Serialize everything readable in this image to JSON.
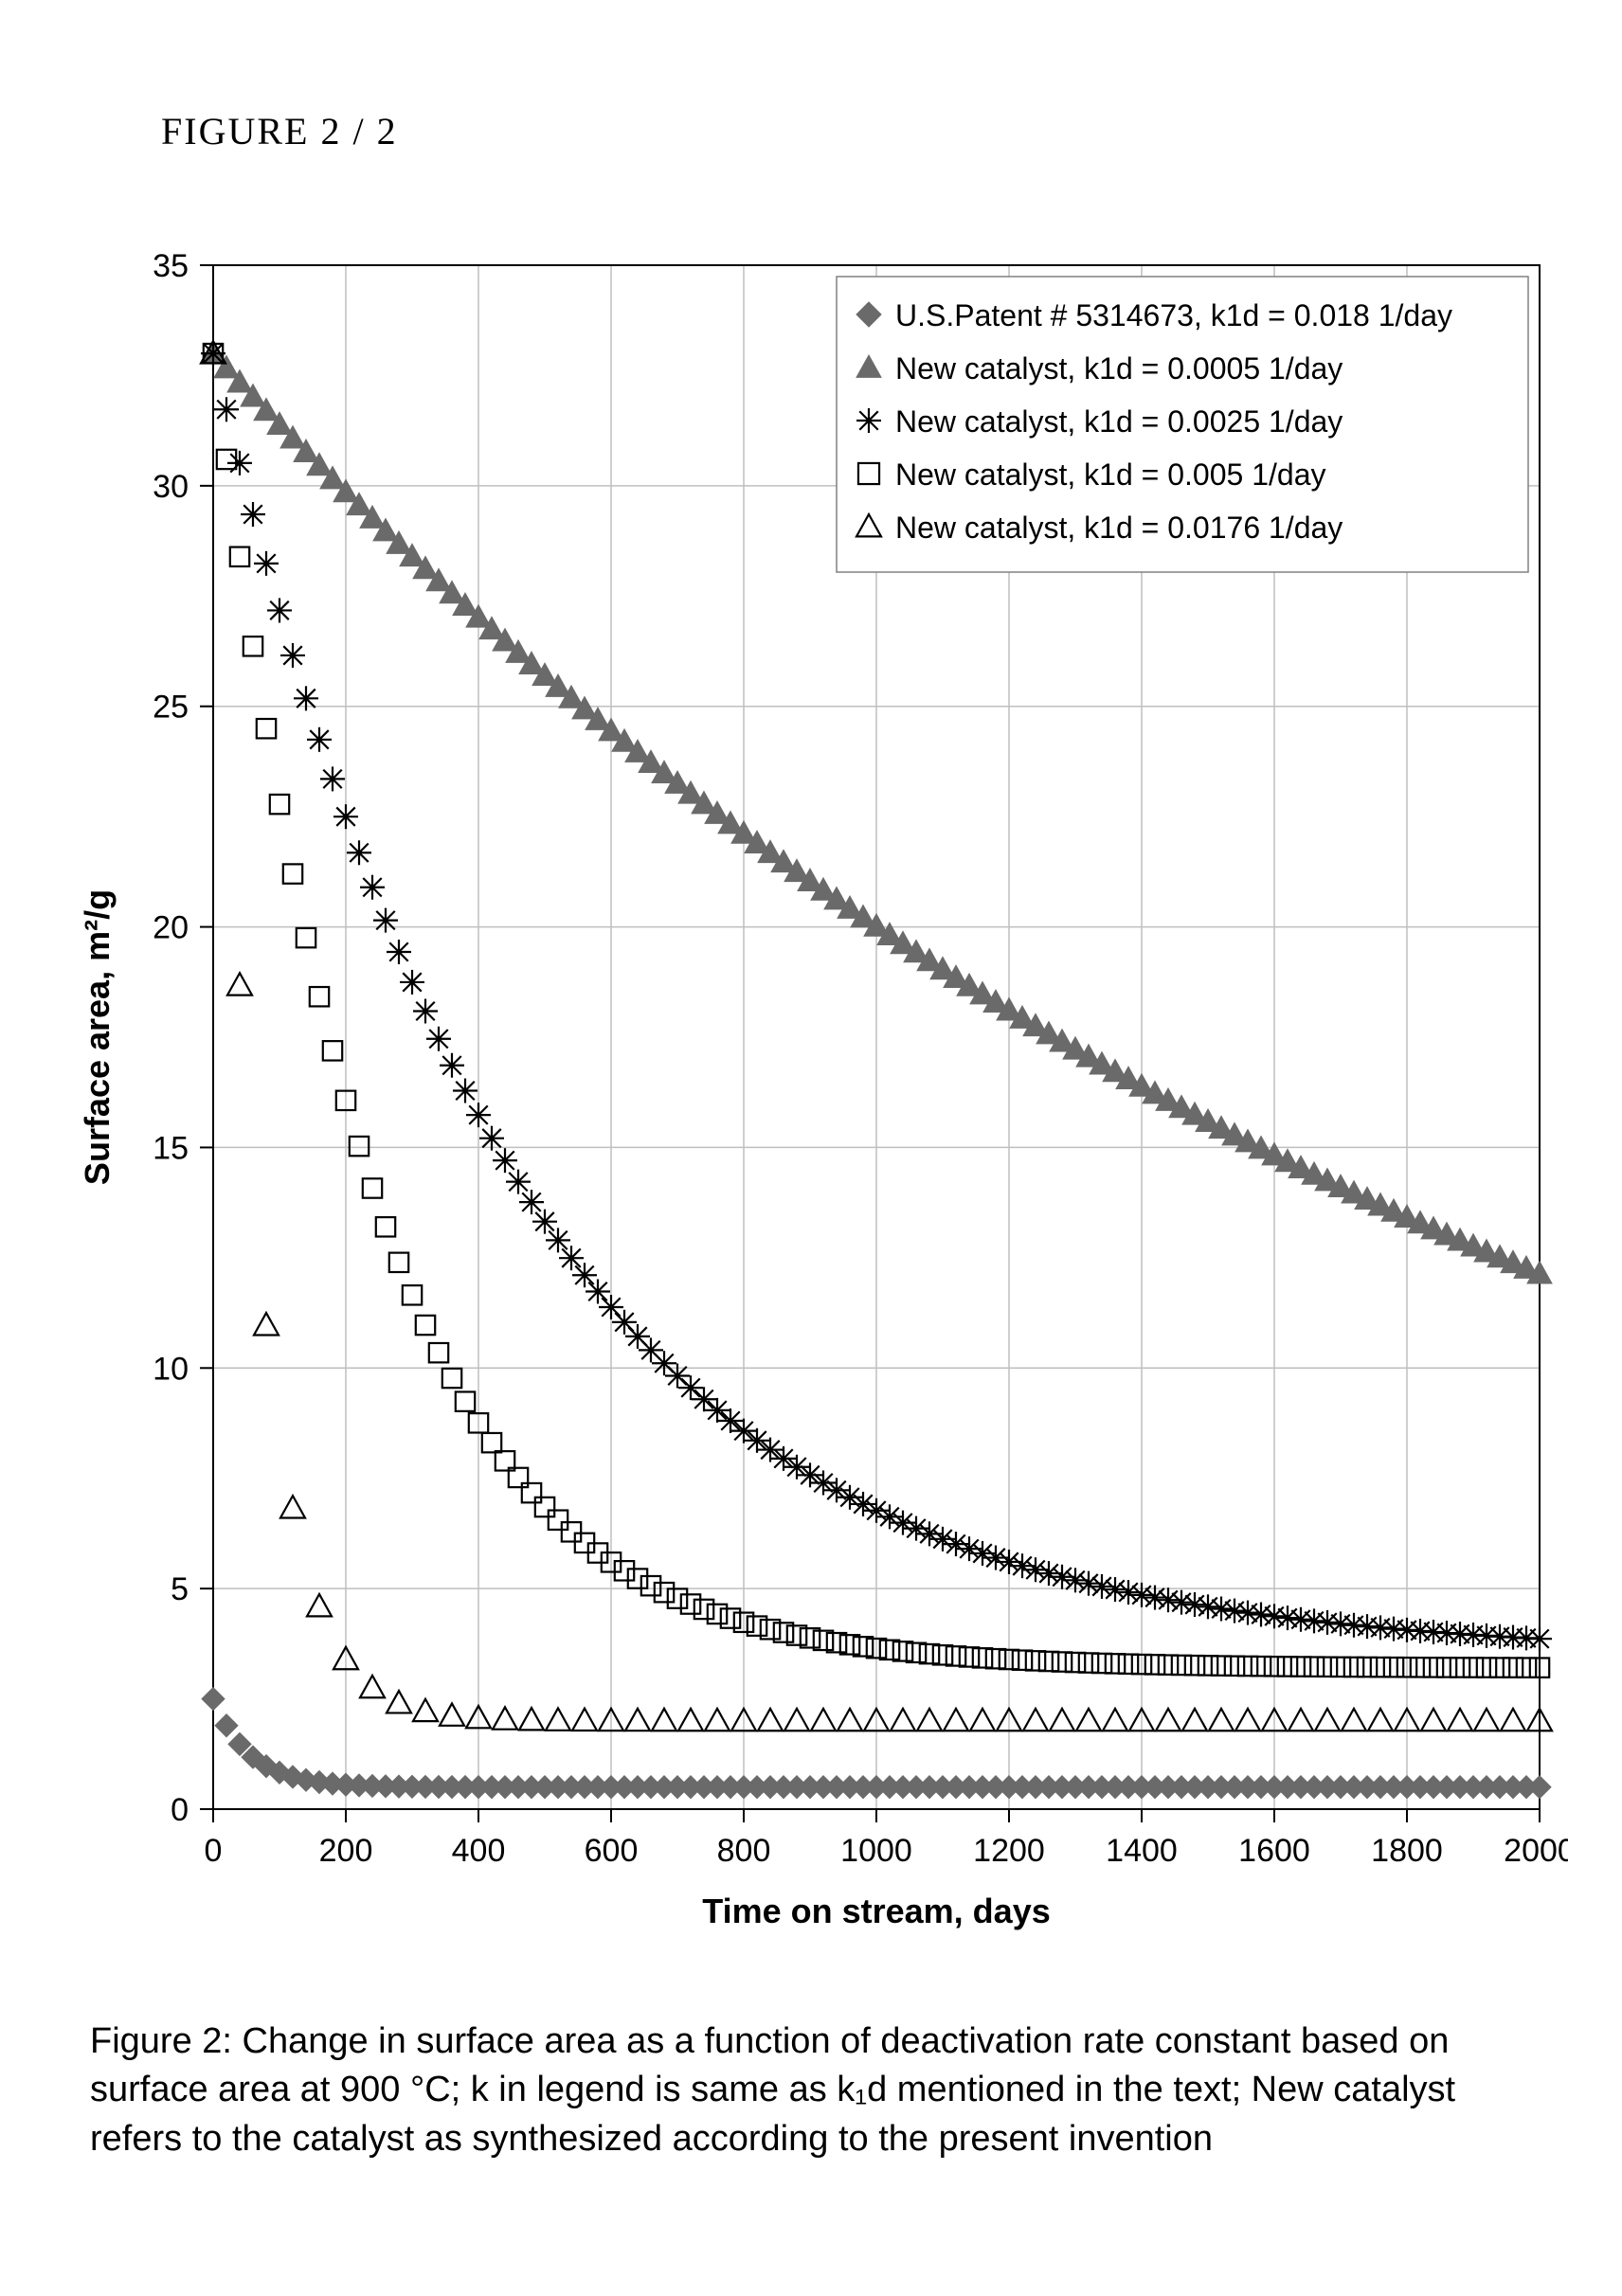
{
  "header": {
    "label": "FIGURE 2 / 2"
  },
  "caption": {
    "text": "Figure 2: Change in surface area as a function of deactivation rate constant based on surface area at 900 °C; k in legend is same as k₁d mentioned in the text; New catalyst refers to the catalyst as synthesized according to the present invention"
  },
  "chart": {
    "type": "scatter-line",
    "xlabel": "Time on stream, days",
    "ylabel": "Surface area, m²/g",
    "label_fontsize": 36,
    "tick_fontsize": 34,
    "xlim": [
      0,
      2000
    ],
    "ylim": [
      0,
      35
    ],
    "xtick_step": 200,
    "ytick_step": 5,
    "background_color": "#ffffff",
    "grid_color": "#bfbfbf",
    "axis_color": "#000000",
    "plot_border_width": 2,
    "legend": {
      "position": "top-right",
      "border_color": "#808080",
      "background": "#ffffff",
      "fontsize": 32,
      "items": [
        {
          "marker": "diamond-filled",
          "color": "#6a6a6a",
          "label": "U.S.Patent # 5314673, k1d = 0.018 1/day"
        },
        {
          "marker": "triangle-filled",
          "color": "#6a6a6a",
          "label": "New catalyst, k1d = 0.0005 1/day"
        },
        {
          "marker": "asterisk",
          "color": "#000000",
          "label": "New catalyst, k1d = 0.0025 1/day"
        },
        {
          "marker": "square-open",
          "color": "#000000",
          "label": "New catalyst, k1d = 0.005 1/day"
        },
        {
          "marker": "triangle-open",
          "color": "#000000",
          "label": "New catalyst, k1d = 0.0176 1/day"
        }
      ]
    },
    "series": [
      {
        "name": "us-patent",
        "marker": "diamond-filled",
        "color": "#6a6a6a",
        "marker_size": 12,
        "formula": "exp_decay",
        "y0": 2.5,
        "k": 0.018,
        "yinf": 0.5,
        "x_step": 20
      },
      {
        "name": "new-0.0005",
        "marker": "triangle-filled",
        "color": "#6a6a6a",
        "marker_size": 13,
        "formula": "exp_decay",
        "y0": 33,
        "k": 0.0005,
        "yinf": 0,
        "x_step": 20
      },
      {
        "name": "new-0.0025",
        "marker": "asterisk",
        "color": "#000000",
        "marker_size": 13,
        "formula": "exp_decay",
        "y0": 33,
        "k": 0.0022,
        "yinf": 3.5,
        "x_step": 20
      },
      {
        "name": "new-0.005",
        "marker": "square-open",
        "color": "#000000",
        "marker_size": 12,
        "formula": "exp_decay",
        "y0": 33,
        "k": 0.0042,
        "yinf": 3.2,
        "x_step": 20
      },
      {
        "name": "new-0.0176",
        "marker": "triangle-open",
        "color": "#000000",
        "marker_size": 13,
        "formula": "exp_decay",
        "y0": 33,
        "k": 0.0155,
        "yinf": 2.0,
        "x_step": 40
      }
    ]
  }
}
